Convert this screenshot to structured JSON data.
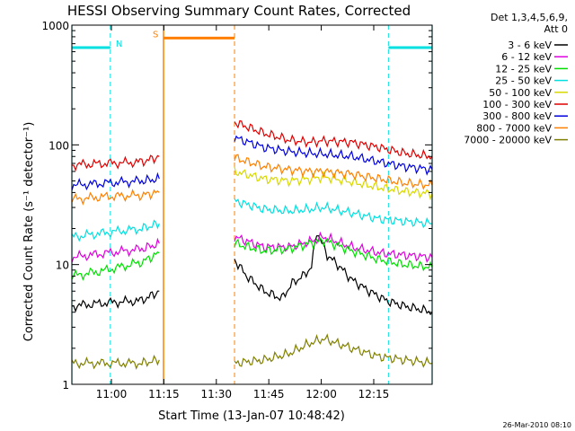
{
  "chart_data": {
    "type": "line",
    "title": "HESSI Observing Summary Count Rates, Corrected",
    "xlabel": "Start Time (13-Jan-07 10:48:42)",
    "ylabel": "Corrected Count Rate (s⁻¹ detector⁻¹)",
    "yscale": "log",
    "ylim": [
      1,
      1000
    ],
    "xlim_minutes": [
      0,
      103
    ],
    "x_ticks": [
      {
        "label": "11:00",
        "min": 11.3
      },
      {
        "label": "11:15",
        "min": 26.3
      },
      {
        "label": "11:30",
        "min": 41.3
      },
      {
        "label": "11:45",
        "min": 56.3
      },
      {
        "label": "12:00",
        "min": 71.3
      },
      {
        "label": "12:15",
        "min": 86.3
      }
    ],
    "y_ticks": [
      {
        "label": "1",
        "value": 1
      },
      {
        "label": "10",
        "value": 10
      },
      {
        "label": "100",
        "value": 100
      },
      {
        "label": "1000",
        "value": 1000
      }
    ],
    "legend_header": [
      "Det 1,3,4,5,6,9,",
      "Att 0"
    ],
    "series": [
      {
        "name": "3 - 6 keV",
        "color": "#000000",
        "segments": [
          {
            "x": [
              0,
              10,
              20,
              25
            ],
            "y": [
              4.5,
              4.8,
              5.0,
              6.0
            ]
          },
          {
            "x": [
              46.5,
              50,
              55,
              60,
              63,
              66,
              68.5,
              70,
              73,
              76,
              80,
              85,
              90,
              95,
              100,
              103
            ],
            "y": [
              11,
              8.0,
              6.0,
              5.2,
              7.0,
              8.0,
              9.5,
              19.0,
              12.0,
              10.0,
              7.5,
              6.0,
              5.0,
              4.5,
              4.2,
              4.0
            ]
          }
        ]
      },
      {
        "name": "6 - 12 keV",
        "color": "#e000e0",
        "segments": [
          {
            "x": [
              0,
              10,
              20,
              25
            ],
            "y": [
              11.5,
              12.5,
              13.5,
              15.0
            ]
          },
          {
            "x": [
              46.5,
              55,
              62,
              68,
              72,
              80,
              88,
              95,
              103
            ],
            "y": [
              17,
              14,
              14,
              15.5,
              17,
              14,
              12.5,
              12.0,
              11.5
            ]
          }
        ]
      },
      {
        "name": "12 - 25 keV",
        "color": "#00e000",
        "segments": [
          {
            "x": [
              0,
              10,
              20,
              25
            ],
            "y": [
              8.0,
              9.0,
              10.5,
              12.5
            ]
          },
          {
            "x": [
              46.5,
              55,
              62,
              68,
              72,
              80,
              88,
              95,
              103
            ],
            "y": [
              15,
              13,
              13.5,
              15,
              16,
              13,
              11,
              10,
              9.5
            ]
          }
        ]
      },
      {
        "name": "25 - 50 keV",
        "color": "#00e0e0",
        "segments": [
          {
            "x": [
              0,
              10,
              20,
              25
            ],
            "y": [
              17,
              18.5,
              20,
              22
            ]
          },
          {
            "x": [
              46.5,
              55,
              62,
              68,
              72,
              80,
              88,
              95,
              103
            ],
            "y": [
              34,
              29,
              28,
              29,
              30,
              27,
              24,
              23,
              22
            ]
          }
        ]
      },
      {
        "name": "50 - 100 keV",
        "color": "#d8d800",
        "segments": [
          {
            "x": [
              46.5,
              55,
              62,
              68,
              72,
              80,
              88,
              95,
              103
            ],
            "y": [
              60,
              52,
              50,
              52,
              54,
              49,
              44,
              41,
              39
            ]
          }
        ]
      },
      {
        "name": "100 - 300 keV",
        "color": "#e00000",
        "segments": [
          {
            "x": [
              0,
              10,
              20,
              25
            ],
            "y": [
              68,
              70,
              72,
              80
            ]
          },
          {
            "x": [
              46.5,
              55,
              62,
              68,
              72,
              80,
              88,
              95,
              103
            ],
            "y": [
              155,
              125,
              110,
              105,
              108,
              105,
              95,
              85,
              80
            ]
          }
        ]
      },
      {
        "name": "300 - 800 keV",
        "color": "#0000e0",
        "segments": [
          {
            "x": [
              0,
              10,
              20,
              25
            ],
            "y": [
              46,
              48,
              50,
              52
            ]
          },
          {
            "x": [
              46.5,
              55,
              62,
              68,
              72,
              80,
              88,
              95,
              103
            ],
            "y": [
              115,
              95,
              88,
              85,
              84,
              80,
              72,
              66,
              62
            ]
          }
        ]
      },
      {
        "name": "800 - 7000 keV",
        "color": "#ff8000",
        "segments": [
          {
            "x": [
              0,
              10,
              20,
              25
            ],
            "y": [
              35,
              37,
              38,
              40
            ]
          },
          {
            "x": [
              46.5,
              55,
              62,
              68,
              72,
              80,
              88,
              95,
              103
            ],
            "y": [
              78,
              66,
              62,
              60,
              60,
              57,
              52,
              48,
              46
            ]
          }
        ]
      },
      {
        "name": "7000 - 20000 keV",
        "color": "#808000",
        "segments": [
          {
            "x": [
              0,
              10,
              20,
              25
            ],
            "y": [
              1.5,
              1.5,
              1.5,
              1.6
            ]
          },
          {
            "x": [
              46.5,
              55,
              62,
              68,
              72,
              80,
              88,
              95,
              103
            ],
            "y": [
              1.5,
              1.6,
              1.8,
              2.2,
              2.4,
              2.0,
              1.7,
              1.6,
              1.5
            ]
          }
        ]
      }
    ],
    "markers": [
      {
        "label": "N",
        "color": "#00e0e0",
        "kind": "night",
        "from_min": 11,
        "to_min": 0,
        "side": "left"
      },
      {
        "label": "",
        "color": "#00e0e0",
        "kind": "night",
        "from_min": 90.5,
        "to_min": 103,
        "side": "right"
      },
      {
        "label": "S",
        "color": "#ff8000",
        "kind": "saa",
        "from_min": 26.2,
        "to_min": 46.5
      }
    ],
    "marker_levels": {
      "night": 650,
      "saa": 780
    },
    "footer_timestamp": "26-Mar-2010 08:10"
  }
}
